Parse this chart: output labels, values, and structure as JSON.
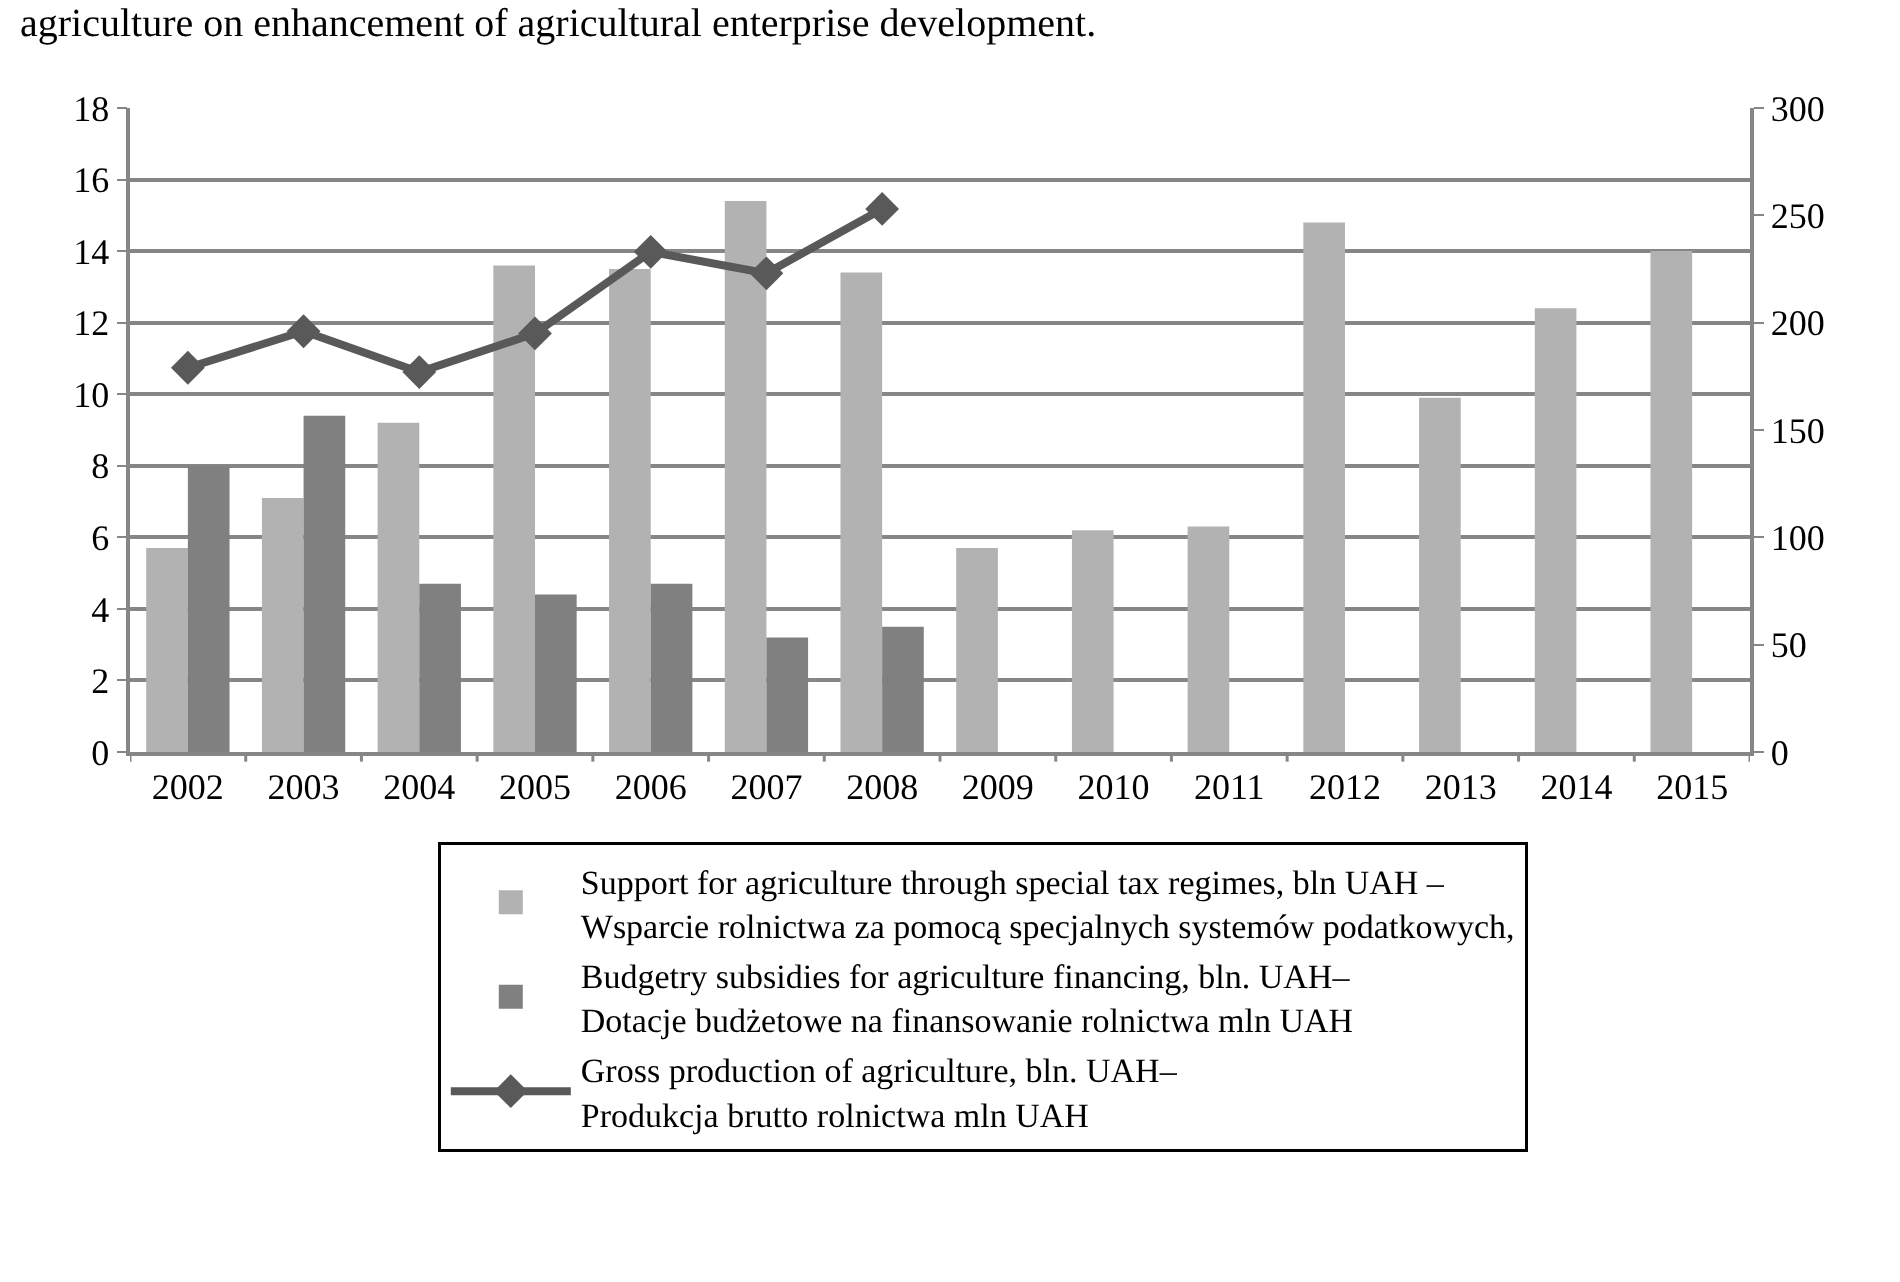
{
  "chart_data": {
    "type": "bar",
    "annotations": [
      "agriculture on enhancement of agricultural enterprise development."
    ],
    "categories": [
      "2002",
      "2003",
      "2004",
      "2005",
      "2006",
      "2007",
      "2008",
      "2009",
      "2010",
      "2011",
      "2012",
      "2013",
      "2014",
      "2015"
    ],
    "series": [
      {
        "name": "Support for agriculture through special tax regimes, bln UAH –\nWsparcie rolnictwa za pomocą specjalnych systemów podatkowych,",
        "color": "#b2b2b2",
        "values": [
          5.7,
          7.1,
          9.2,
          13.6,
          13.5,
          15.4,
          13.4,
          5.7,
          6.2,
          6.3,
          14.8,
          9.9,
          12.4,
          14.0
        ]
      },
      {
        "name": "Budgetry subsidies for agriculture financing, bln. UAH–\nDotacje budżetowe na finansowanie rolnictwa mln UAH",
        "color": "#808080",
        "values": [
          8.0,
          9.4,
          4.7,
          4.4,
          4.7,
          3.2,
          3.5,
          null,
          null,
          null,
          null,
          null,
          null,
          null
        ]
      },
      {
        "name": "Gross production of agriculture, bln. UAH–\nProdukcja brutto rolnictwa mln UAH",
        "color": "#595959",
        "type": "line",
        "axis": "y2",
        "marker": "diamond",
        "values": [
          179,
          196,
          177,
          195,
          233,
          223,
          253,
          null,
          null,
          null,
          null,
          null,
          null,
          null
        ]
      }
    ],
    "ylim": [
      0,
      18
    ],
    "yticks": [
      0,
      2,
      4,
      6,
      8,
      10,
      12,
      14,
      16,
      18
    ],
    "y2lim": [
      0,
      300
    ],
    "y2ticks": [
      0,
      50,
      100,
      150,
      200,
      250,
      300
    ],
    "grid": "y",
    "legend": "bottom"
  }
}
